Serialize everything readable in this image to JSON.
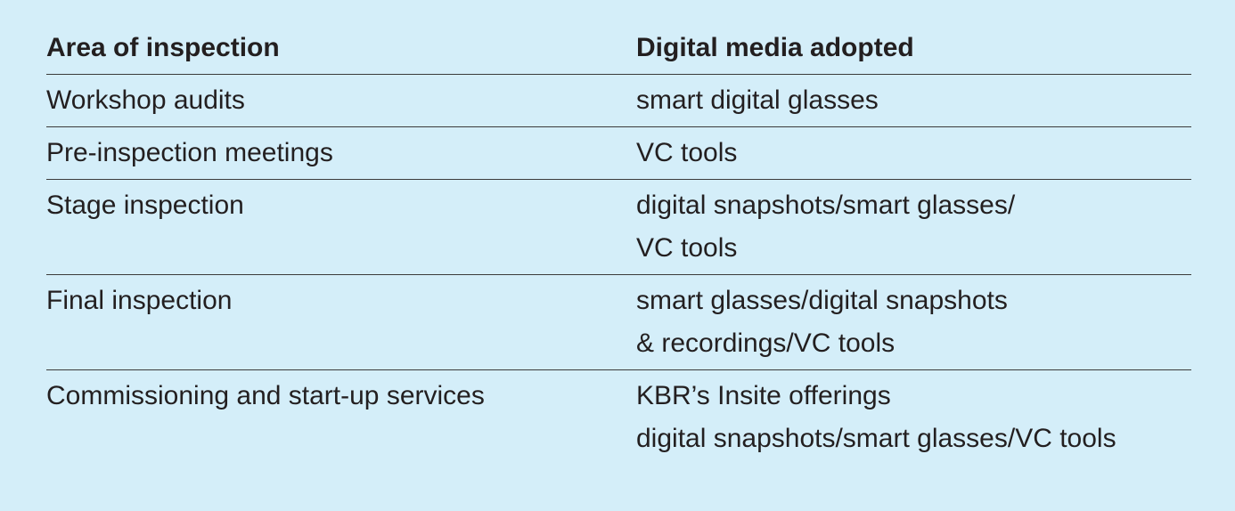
{
  "table": {
    "headers": [
      "Area of inspection",
      "Digital media adopted"
    ],
    "rows": [
      {
        "area": "Workshop audits",
        "media": [
          "smart digital glasses"
        ]
      },
      {
        "area": "Pre-inspection meetings",
        "media": [
          "VC tools"
        ]
      },
      {
        "area": "Stage inspection",
        "media": [
          "digital snapshots/smart glasses/",
          "VC tools"
        ]
      },
      {
        "area": "Final inspection",
        "media": [
          "smart glasses/digital snapshots",
          "& recordings/VC tools"
        ]
      },
      {
        "area": "Commissioning and start-up services",
        "media": [
          "KBR’s Insite offerings",
          "digital snapshots/smart glasses/VC tools"
        ]
      }
    ]
  }
}
